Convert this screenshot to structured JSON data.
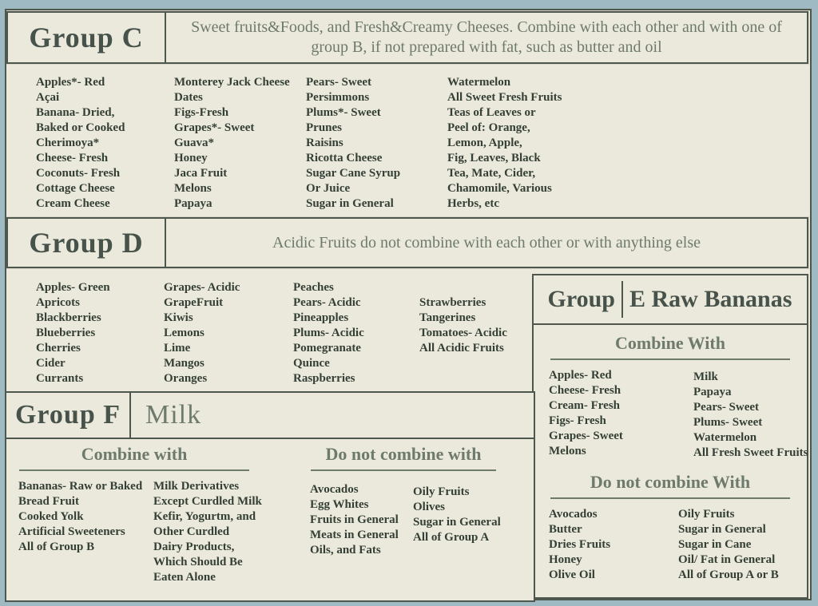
{
  "palette": {
    "frame": "#9fbac2",
    "paper": "#eae9dc",
    "border": "#4d574e",
    "title": "#47524a",
    "description": "#6e7a6c",
    "text": "#343f35"
  },
  "group_c": {
    "title": "Group C",
    "description": "Sweet fruits&Foods, and Fresh&Creamy Cheeses. Combine with each other and with one of group B, if not prepared with fat, such as butter and oil",
    "columns": [
      [
        "Apples*- Red",
        "Açai",
        "Banana- Dried,",
        "Baked or Cooked",
        "Cherimoya*",
        "Cheese- Fresh",
        "Coconuts- Fresh",
        "Cottage Cheese",
        "Cream Cheese"
      ],
      [
        "Monterey Jack Cheese",
        "Dates",
        "Figs-Fresh",
        "Grapes*- Sweet",
        "Guava*",
        "Honey",
        "Jaca Fruit",
        "Melons",
        "Papaya"
      ],
      [
        "Pears- Sweet",
        "Persimmons",
        "Plums*- Sweet",
        "Prunes",
        "Raisins",
        "Ricotta Cheese",
        "Sugar Cane Syrup",
        "Or Juice",
        "Sugar in General"
      ],
      [
        "Watermelon",
        "All Sweet Fresh Fruits",
        "Teas of Leaves or",
        "Peel of: Orange,",
        "Lemon, Apple,",
        "Fig, Leaves, Black",
        "Tea, Mate, Cider,",
        "Chamomile, Various",
        "Herbs, etc"
      ]
    ]
  },
  "group_d": {
    "title": "Group D",
    "description": "Acidic Fruits do not combine with each other or with anything else",
    "columns": [
      [
        "Apples- Green",
        "Apricots",
        "Blackberries",
        "Blueberries",
        "Cherries",
        "Cider",
        "Currants"
      ],
      [
        "Grapes- Acidic",
        "GrapeFruit",
        "Kiwis",
        "Lemons",
        "Lime",
        "Mangos",
        "Oranges"
      ],
      [
        "Peaches",
        "Pears- Acidic",
        "Pineapples",
        "Plums- Acidic",
        "Pomegranate",
        "Quince",
        "Raspberries"
      ],
      [
        "Strawberries",
        "Tangerines",
        "Tomatoes- Acidic",
        "All Acidic Fruits"
      ]
    ]
  },
  "group_e": {
    "title_left": "Group",
    "title_right": "E Raw Bananas",
    "combine_heading": "Combine With",
    "combine_columns": [
      [
        "Apples- Red",
        "Cheese- Fresh",
        "Cream- Fresh",
        "Figs- Fresh",
        "Grapes- Sweet",
        "Melons"
      ],
      [
        "Milk",
        "Papaya",
        "Pears- Sweet",
        "Plums- Sweet",
        "Watermelon",
        "All Fresh Sweet Fruits"
      ]
    ],
    "avoid_heading": "Do not combine With",
    "avoid_columns": [
      [
        "Avocados",
        "Butter",
        "Dries Fruits",
        "Honey",
        "Olive Oil"
      ],
      [
        "Oily Fruits",
        "Sugar in General",
        "Sugar in Cane",
        "Oil/ Fat in General",
        "All of Group A or B"
      ]
    ]
  },
  "group_f": {
    "title": "Group F",
    "subtitle": "Milk",
    "combine_heading": "Combine with",
    "combine_columns": [
      [
        "Bananas- Raw or Baked",
        "Bread Fruit",
        "Cooked Yolk",
        "Artificial Sweeteners",
        "All of Group B"
      ],
      [
        "Milk Derivatives",
        "Except Curdled Milk",
        "Kefir, Yogurtm, and",
        "Other Curdled",
        "Dairy Products,",
        "Which Should Be",
        "Eaten Alone"
      ]
    ],
    "avoid_heading": "Do not combine with",
    "avoid_columns": [
      [
        "Avocados",
        "Egg Whites",
        "Fruits in General",
        "Meats in General",
        "Oils, and Fats"
      ],
      [
        "Oily Fruits",
        "Olives",
        "Sugar in General",
        "All of Group A"
      ]
    ]
  }
}
